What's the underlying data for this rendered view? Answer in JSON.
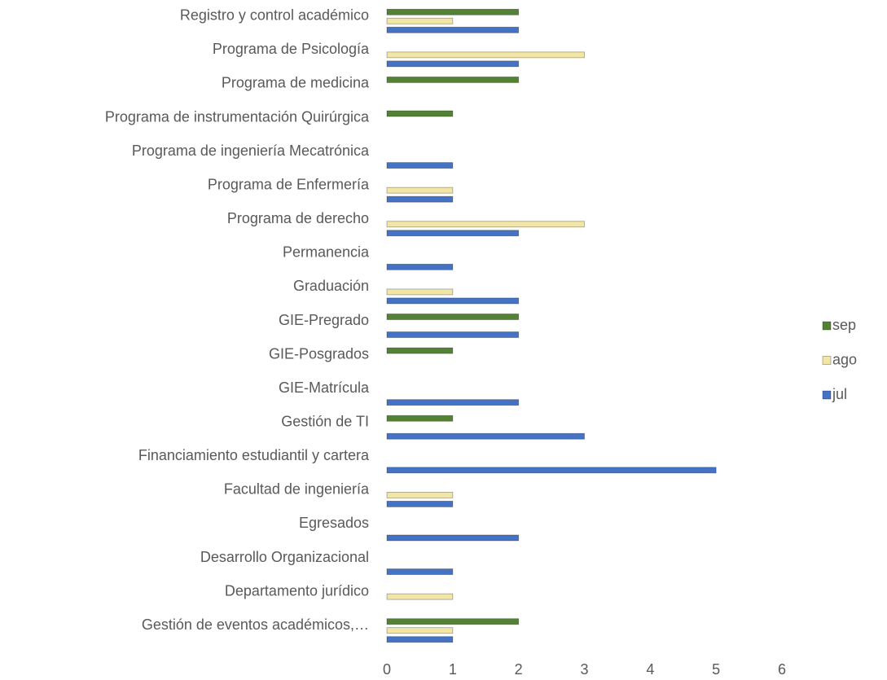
{
  "chart_data": {
    "type": "bar",
    "orientation": "horizontal",
    "categories": [
      "Gestión de eventos académicos,…",
      "Departamento jurídico",
      "Desarrollo Organizacional",
      "Egresados",
      "Facultad de ingeniería",
      "Financiamiento estudiantil y cartera",
      "Gestión de TI",
      "GIE-Matrícula",
      "GIE-Posgrados",
      "GIE-Pregrado",
      "Graduación",
      "Permanencia",
      "Programa de derecho",
      "Programa de Enfermería",
      "Programa de ingeniería Mecatrónica",
      "Programa de instrumentación Quirúrgica",
      "Programa de medicina",
      "Programa de Psicología",
      "Registro y control académico"
    ],
    "series": [
      {
        "name": "jul",
        "color": "#4472c4",
        "values": [
          1,
          null,
          1,
          2,
          1,
          5,
          3,
          2,
          null,
          2,
          2,
          1,
          2,
          1,
          1,
          null,
          null,
          2,
          2
        ]
      },
      {
        "name": "ago",
        "color": "#f2e6a6",
        "values": [
          1,
          1,
          null,
          null,
          1,
          null,
          null,
          null,
          null,
          null,
          1,
          null,
          3,
          1,
          null,
          null,
          null,
          3,
          1
        ]
      },
      {
        "name": "sep",
        "color": "#548235",
        "values": [
          2,
          null,
          null,
          null,
          null,
          null,
          1,
          null,
          1,
          2,
          null,
          null,
          null,
          null,
          null,
          1,
          2,
          null,
          2
        ]
      }
    ],
    "xlim": [
      0,
      6
    ],
    "xticks": [
      0,
      1,
      2,
      3,
      4,
      5,
      6
    ],
    "grid": false,
    "legend": "right"
  }
}
